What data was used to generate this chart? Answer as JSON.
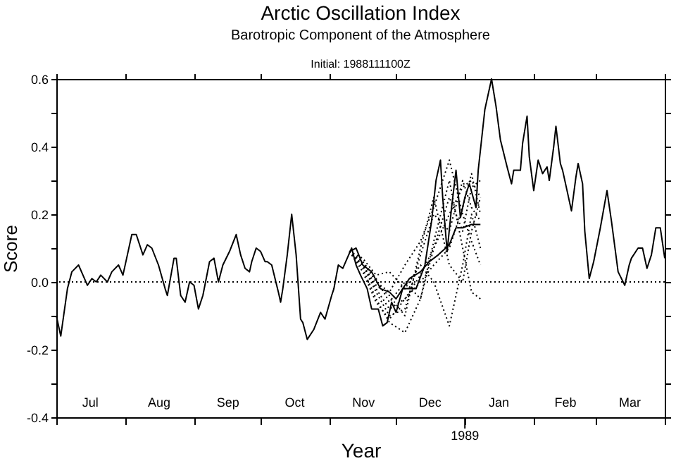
{
  "chart_data": {
    "type": "line",
    "title": "Arctic Oscillation Index",
    "subtitle": "Barotropic Component of the Atmosphere",
    "annotations": [
      "Initial: 1988111100Z",
      "1989"
    ],
    "xlabel": "Year",
    "ylabel": "Score",
    "xlim": [
      "1988-07-01",
      "1989-04-01"
    ],
    "xticks": [
      {
        "value": "1988-07-01",
        "label": null
      },
      {
        "value": "1988-08-01",
        "label": null
      },
      {
        "value": "1988-09-01",
        "label": null
      },
      {
        "value": "1988-10-01",
        "label": null
      },
      {
        "value": "1988-11-01",
        "label": null
      },
      {
        "value": "1988-12-01",
        "label": null
      },
      {
        "value": "1989-01-01",
        "label": null
      },
      {
        "value": "1989-02-01",
        "label": null
      },
      {
        "value": "1989-03-01",
        "label": null
      },
      {
        "value": "1989-04-01",
        "label": null
      },
      {
        "value": "1988-07-16",
        "label": "Jul"
      },
      {
        "value": "1988-08-16",
        "label": "Aug"
      },
      {
        "value": "1988-09-16",
        "label": "Sep"
      },
      {
        "value": "1988-10-16",
        "label": "Oct"
      },
      {
        "value": "1988-11-16",
        "label": "Nov"
      },
      {
        "value": "1988-12-16",
        "label": "Dec"
      },
      {
        "value": "1989-01-16",
        "label": "Jan"
      },
      {
        "value": "1989-02-15",
        "label": "Feb"
      },
      {
        "value": "1989-03-16",
        "label": "Mar"
      }
    ],
    "ylim": [
      -0.4,
      0.6
    ],
    "yticks": [
      {
        "value": -0.4,
        "label": "-0.4"
      },
      {
        "value": -0.3,
        "label": null
      },
      {
        "value": -0.2,
        "label": "-0.2"
      },
      {
        "value": -0.1,
        "label": null
      },
      {
        "value": 0,
        "label": "0.0"
      },
      {
        "value": 0.1,
        "label": null
      },
      {
        "value": 0.2,
        "label": "0.2"
      },
      {
        "value": 0.3,
        "label": null
      },
      {
        "value": 0.4,
        "label": "0.4"
      },
      {
        "value": 0.5,
        "label": null
      },
      {
        "value": 0.6,
        "label": "0.6"
      }
    ],
    "ref_lines": [
      {
        "axis": "y",
        "value": 0,
        "color": "#000000",
        "line_style": "dotted"
      }
    ],
    "series": [
      {
        "color": "#000000",
        "line_style": "solid",
        "x": [
          "1988-07-01",
          "1988-07-03",
          "1988-07-06",
          "1988-07-08",
          "1988-07-11",
          "1988-07-13",
          "1988-07-15",
          "1988-07-17",
          "1988-07-19",
          "1988-07-21",
          "1988-07-24",
          "1988-07-26",
          "1988-07-29",
          "1988-07-31",
          "1988-08-02",
          "1988-08-04",
          "1988-08-06",
          "1988-08-09",
          "1988-08-11",
          "1988-08-13",
          "1988-08-16",
          "1988-08-19",
          "1988-08-20",
          "1988-08-23",
          "1988-08-24",
          "1988-08-26",
          "1988-08-28",
          "1988-08-30",
          "1988-09-01",
          "1988-09-03",
          "1988-09-05",
          "1988-09-08",
          "1988-09-10",
          "1988-09-12",
          "1988-09-14",
          "1988-09-17",
          "1988-09-20",
          "1988-09-22",
          "1988-09-24",
          "1988-09-26",
          "1988-09-27",
          "1988-09-29",
          "1988-10-01",
          "1988-10-03",
          "1988-10-04",
          "1988-10-06",
          "1988-10-09",
          "1988-10-10",
          "1988-10-11",
          "1988-10-13",
          "1988-10-15",
          "1988-10-17",
          "1988-10-19",
          "1988-10-20",
          "1988-10-22",
          "1988-10-25",
          "1988-10-28",
          "1988-10-30",
          "1988-11-02",
          "1988-11-03",
          "1988-11-05",
          "1988-11-07",
          "1988-11-09",
          "1988-11-11",
          "1988-11-13",
          "1988-11-15",
          "1988-11-18",
          "1988-11-20",
          "1988-11-23",
          "1988-11-25",
          "1988-11-27",
          "1988-11-29",
          "1988-12-01",
          "1988-12-04",
          "1988-12-10",
          "1988-12-14",
          "1988-12-17",
          "1988-12-19",
          "1988-12-21",
          "1988-12-22",
          "1988-12-24",
          "1988-12-26",
          "1988-12-28",
          "1988-12-30",
          "1989-01-01",
          "1989-01-03",
          "1989-01-06",
          "1989-01-07",
          "1989-01-08",
          "1989-01-10",
          "1989-01-13",
          "1989-01-15",
          "1989-01-17",
          "1989-01-20",
          "1989-01-22",
          "1989-01-23",
          "1989-01-26",
          "1989-01-27",
          "1989-01-29",
          "1989-01-30",
          "1989-02-01",
          "1989-02-03",
          "1989-02-05",
          "1989-02-07",
          "1989-02-08",
          "1989-02-10",
          "1989-02-11",
          "1989-02-13",
          "1989-02-14",
          "1989-02-16",
          "1989-02-18",
          "1989-02-20",
          "1989-02-21",
          "1989-02-23",
          "1989-02-24",
          "1989-02-26",
          "1989-02-28",
          "1989-03-03",
          "1989-03-06",
          "1989-03-08",
          "1989-03-11",
          "1989-03-14",
          "1989-03-16",
          "1989-03-17",
          "1989-03-20",
          "1989-03-22",
          "1989-03-24",
          "1989-03-26",
          "1989-03-28",
          "1989-03-30",
          "1989-04-01"
        ],
        "values": [
          -0.1,
          -0.16,
          -0.02,
          0.03,
          0.05,
          0.02,
          -0.01,
          0.01,
          0.0,
          0.02,
          0.0,
          0.03,
          0.05,
          0.02,
          0.08,
          0.14,
          0.14,
          0.08,
          0.11,
          0.1,
          0.05,
          -0.02,
          -0.04,
          0.07,
          0.07,
          -0.04,
          -0.06,
          0.0,
          -0.01,
          -0.08,
          -0.04,
          0.06,
          0.07,
          0.0,
          0.05,
          0.09,
          0.14,
          0.08,
          0.04,
          0.03,
          0.06,
          0.1,
          0.09,
          0.06,
          0.06,
          0.05,
          -0.03,
          -0.06,
          -0.02,
          0.08,
          0.2,
          0.08,
          -0.11,
          -0.12,
          -0.17,
          -0.14,
          -0.09,
          -0.11,
          -0.04,
          -0.02,
          0.05,
          0.04,
          0.07,
          0.1,
          0.05,
          0.02,
          -0.02,
          -0.08,
          -0.08,
          -0.13,
          -0.12,
          -0.06,
          -0.09,
          -0.02,
          -0.02,
          0.05,
          0.18,
          0.3,
          0.36,
          0.25,
          0.09,
          0.22,
          0.33,
          0.19,
          0.25,
          0.29,
          0.22,
          0.33,
          0.39,
          0.51,
          0.6,
          0.52,
          0.42,
          0.34,
          0.29,
          0.33,
          0.33,
          0.41,
          0.49,
          0.37,
          0.27,
          0.36,
          0.32,
          0.34,
          0.3,
          0.4,
          0.46,
          0.35,
          0.33,
          0.27,
          0.21,
          0.31,
          0.35,
          0.29,
          0.15,
          0.01,
          0.06,
          0.16,
          0.27,
          0.18,
          0.03,
          -0.01,
          0.05,
          0.07,
          0.1,
          0.1,
          0.04,
          0.08,
          0.16,
          0.16,
          0.07
        ]
      },
      {
        "color": "#000000",
        "line_style": "dotted",
        "x": [
          "1988-11-10",
          "1988-11-16",
          "1988-11-22",
          "1988-11-28",
          "1988-12-05",
          "1988-12-12",
          "1988-12-18",
          "1988-12-25",
          "1988-12-31",
          "1989-01-04",
          "1989-01-08"
        ],
        "values": [
          0.09,
          0.05,
          -0.02,
          -0.08,
          -0.05,
          0.02,
          0.1,
          0.2,
          0.28,
          0.3,
          0.25
        ]
      },
      {
        "color": "#000000",
        "line_style": "dotted",
        "x": [
          "1988-11-10",
          "1988-11-16",
          "1988-11-22",
          "1988-11-28",
          "1988-12-05",
          "1988-12-12",
          "1988-12-18",
          "1988-12-25",
          "1988-12-31",
          "1989-01-04",
          "1989-01-08"
        ],
        "values": [
          0.09,
          0.06,
          0.0,
          -0.03,
          0.05,
          0.12,
          0.22,
          0.36,
          0.2,
          0.12,
          0.05
        ]
      },
      {
        "color": "#000000",
        "line_style": "dotted",
        "x": [
          "1988-11-10",
          "1988-11-16",
          "1988-11-22",
          "1988-11-28",
          "1988-12-05",
          "1988-12-12",
          "1988-12-18",
          "1988-12-25",
          "1988-12-31",
          "1989-01-04",
          "1989-01-08"
        ],
        "values": [
          0.09,
          0.04,
          -0.05,
          -0.12,
          -0.15,
          -0.05,
          0.1,
          0.25,
          0.15,
          0.28,
          0.3
        ]
      },
      {
        "color": "#000000",
        "line_style": "dotted",
        "x": [
          "1988-11-10",
          "1988-11-16",
          "1988-11-22",
          "1988-11-28",
          "1988-12-05",
          "1988-12-12",
          "1988-12-18",
          "1988-12-25",
          "1988-12-31",
          "1989-01-04",
          "1989-01-08"
        ],
        "values": [
          0.09,
          0.07,
          0.02,
          0.03,
          -0.02,
          0.05,
          0.0,
          -0.13,
          0.05,
          0.2,
          0.1
        ]
      },
      {
        "color": "#000000",
        "line_style": "dotted",
        "x": [
          "1988-11-10",
          "1988-11-16",
          "1988-11-22",
          "1988-11-28",
          "1988-12-05",
          "1988-12-12",
          "1988-12-18",
          "1988-12-25",
          "1988-12-31",
          "1989-01-04",
          "1989-01-08"
        ],
        "values": [
          0.09,
          0.05,
          -0.03,
          -0.1,
          -0.08,
          0.08,
          0.2,
          0.15,
          0.3,
          0.22,
          0.18
        ]
      },
      {
        "color": "#000000",
        "line_style": "dotted",
        "x": [
          "1988-11-10",
          "1988-11-16",
          "1988-11-22",
          "1988-11-28",
          "1988-12-05",
          "1988-12-12",
          "1988-12-18",
          "1988-12-25",
          "1988-12-31",
          "1989-01-04",
          "1989-01-08"
        ],
        "values": [
          0.09,
          0.06,
          0.01,
          -0.06,
          0.0,
          -0.05,
          0.12,
          0.3,
          0.1,
          -0.03,
          -0.05
        ]
      },
      {
        "color": "#000000",
        "line_style": "dotted",
        "x": [
          "1988-11-10",
          "1988-11-16",
          "1988-11-22",
          "1988-11-28",
          "1988-12-05",
          "1988-12-12",
          "1988-12-18",
          "1988-12-25",
          "1988-12-31",
          "1989-01-04",
          "1989-01-08"
        ],
        "values": [
          0.09,
          0.03,
          -0.06,
          -0.11,
          -0.05,
          0.0,
          0.05,
          0.1,
          0.22,
          0.32,
          0.2
        ]
      },
      {
        "color": "#000000",
        "line_style": "dotted",
        "x": [
          "1988-11-10",
          "1988-11-16",
          "1988-11-22",
          "1988-11-28",
          "1988-12-05",
          "1988-12-12",
          "1988-12-18",
          "1988-12-25",
          "1988-12-31",
          "1989-01-04",
          "1989-01-08"
        ],
        "values": [
          0.09,
          0.05,
          -0.01,
          -0.04,
          -0.1,
          0.1,
          0.25,
          0.05,
          0.0,
          0.15,
          0.25
        ]
      },
      {
        "color": "#000000",
        "line_style": "solid",
        "x": [
          "1988-11-10",
          "1988-11-13",
          "1988-11-16",
          "1988-11-20",
          "1988-11-24",
          "1988-11-28",
          "1988-12-01",
          "1988-12-04",
          "1988-12-07",
          "1988-12-12",
          "1988-12-16",
          "1988-12-20",
          "1988-12-25",
          "1988-12-28",
          "1988-12-31",
          "1989-01-04",
          "1989-01-08"
        ],
        "values": [
          0.09,
          0.1,
          0.05,
          0.03,
          -0.02,
          -0.03,
          -0.05,
          -0.02,
          0.01,
          0.03,
          0.06,
          0.08,
          0.11,
          0.16,
          0.16,
          0.17,
          0.17
        ]
      }
    ]
  }
}
